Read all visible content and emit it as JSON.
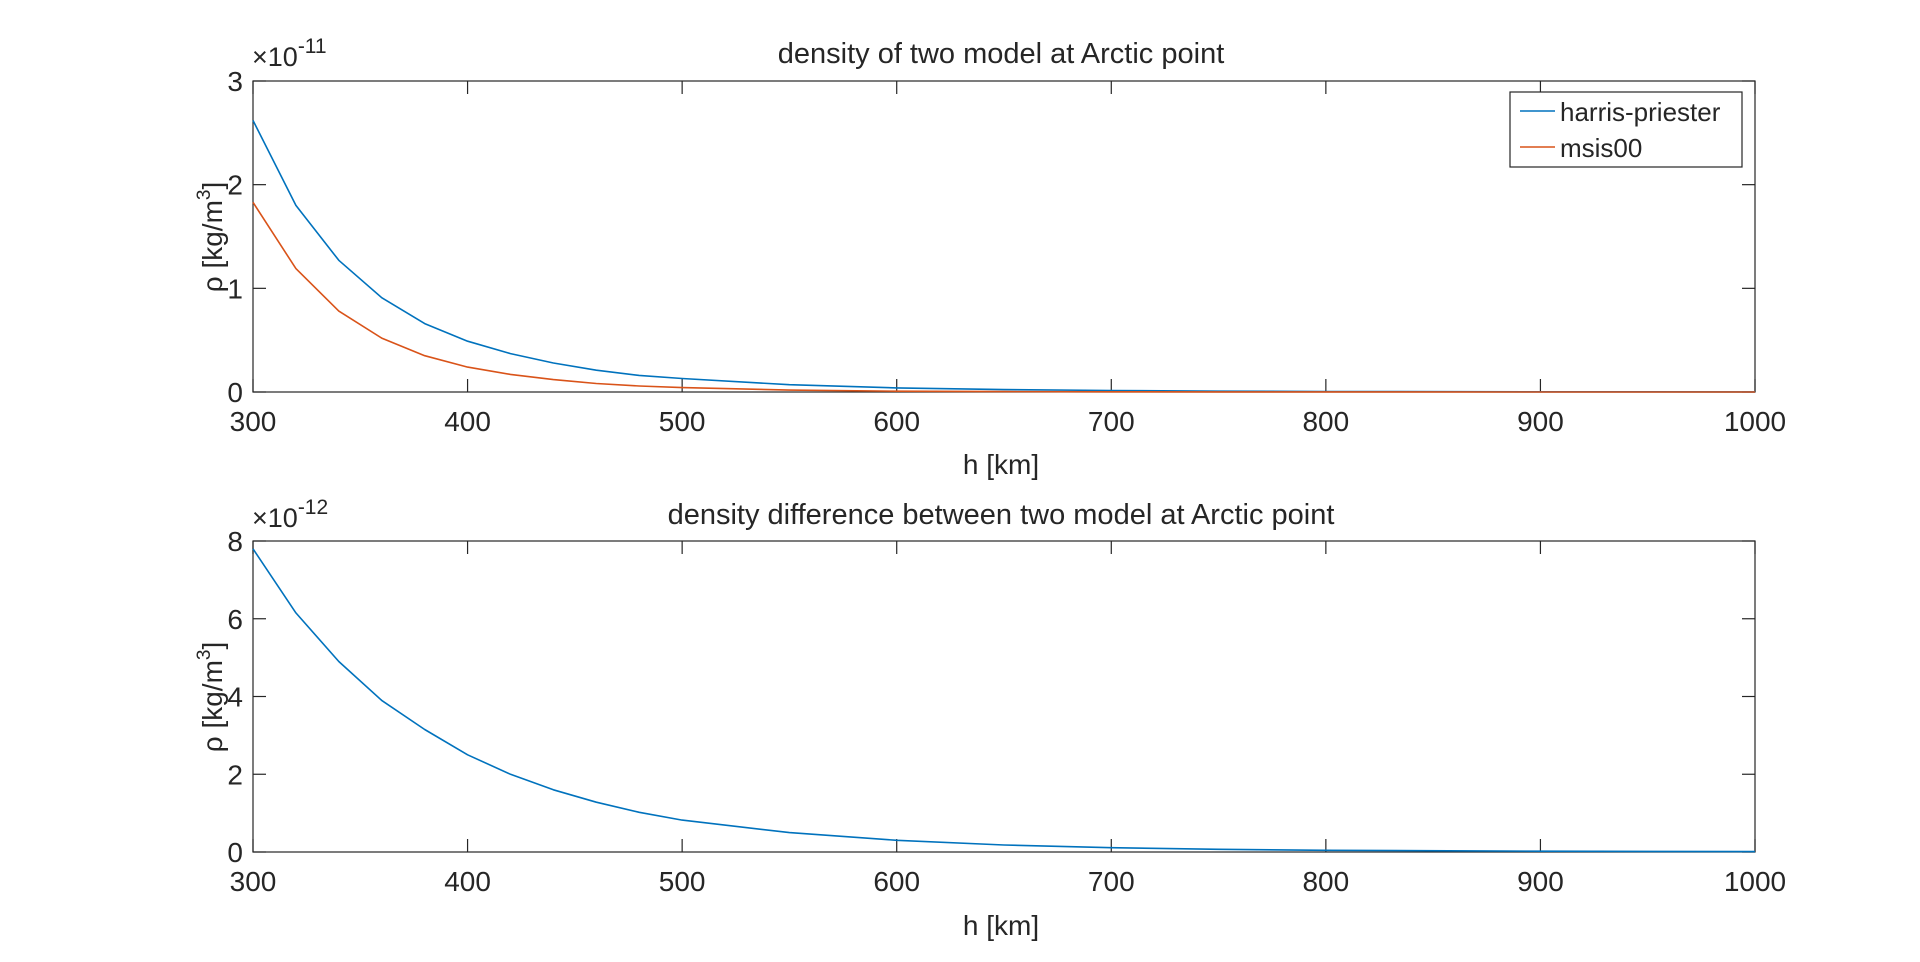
{
  "chart_data": [
    {
      "type": "line",
      "title": "density of two model at Arctic point",
      "xlabel": "h [km]",
      "ylabel_prefix": "ρ [kg/m",
      "ylabel_sup": "3",
      "ylabel_suffix": "]",
      "exponent_base": "×10",
      "exponent_power": "-11",
      "xlim": [
        300,
        1000
      ],
      "ylim": [
        0,
        3
      ],
      "xticks": [
        "300",
        "400",
        "500",
        "600",
        "700",
        "800",
        "900",
        "1000"
      ],
      "yticks": [
        "0",
        "1",
        "2",
        "3"
      ],
      "grid": false,
      "legend_position": "top-right",
      "x": [
        300,
        320,
        340,
        360,
        380,
        400,
        420,
        440,
        460,
        480,
        500,
        550,
        600,
        650,
        700,
        750,
        800,
        900,
        1000
      ],
      "series": [
        {
          "name": "harris-priester",
          "color": "#0072BD",
          "values": [
            2.62,
            1.8,
            1.27,
            0.91,
            0.66,
            0.49,
            0.37,
            0.28,
            0.21,
            0.16,
            0.13,
            0.07,
            0.04,
            0.023,
            0.014,
            0.008,
            0.005,
            0.002,
            0.001
          ]
        },
        {
          "name": "msis00",
          "color": "#D95319",
          "values": [
            1.83,
            1.19,
            0.78,
            0.52,
            0.35,
            0.24,
            0.17,
            0.12,
            0.082,
            0.058,
            0.042,
            0.018,
            0.008,
            0.004,
            0.002,
            0.001,
            0.0005,
            0.0002,
            0.0001
          ]
        }
      ]
    },
    {
      "type": "line",
      "title": "density difference between two model at Arctic point",
      "xlabel": "h [km]",
      "ylabel_prefix": "ρ [kg/m",
      "ylabel_sup": "3",
      "ylabel_suffix": "]",
      "exponent_base": "×10",
      "exponent_power": "-12",
      "xlim": [
        300,
        1000
      ],
      "ylim": [
        0,
        8
      ],
      "xticks": [
        "300",
        "400",
        "500",
        "600",
        "700",
        "800",
        "900",
        "1000"
      ],
      "yticks": [
        "0",
        "2",
        "4",
        "6",
        "8"
      ],
      "grid": false,
      "x": [
        300,
        320,
        340,
        360,
        380,
        400,
        420,
        440,
        460,
        480,
        500,
        550,
        600,
        650,
        700,
        750,
        800,
        900,
        1000
      ],
      "series": [
        {
          "color": "#0072BD",
          "values": [
            7.8,
            6.15,
            4.9,
            3.9,
            3.15,
            2.5,
            2.0,
            1.6,
            1.28,
            1.02,
            0.82,
            0.5,
            0.3,
            0.18,
            0.11,
            0.07,
            0.045,
            0.02,
            0.01
          ]
        }
      ]
    }
  ]
}
